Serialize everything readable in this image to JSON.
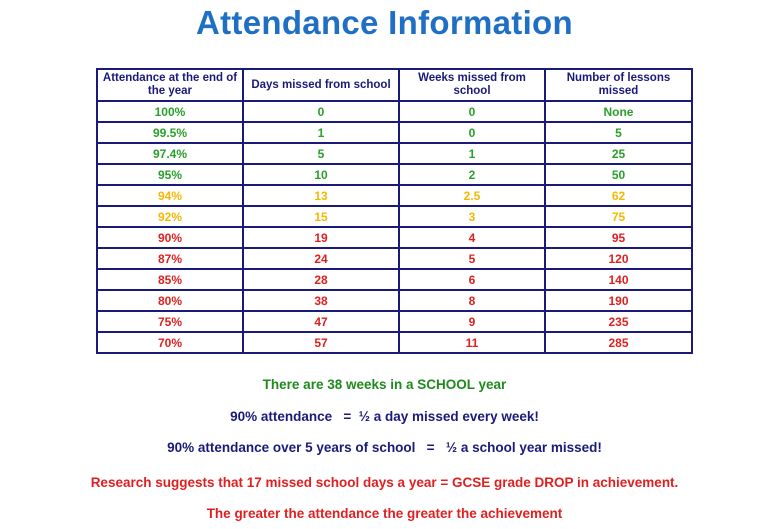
{
  "title": "Attendance Information",
  "colors": {
    "title": "#1f6fc5",
    "border": "#1a1a7a",
    "green": "#2aa02a",
    "amber": "#f5b800",
    "red": "#e02020",
    "navy": "#1a1a7a",
    "dark_green": "#1e8a1e"
  },
  "table": {
    "headers": [
      "Attendance at the end of the year",
      "Days missed from school",
      "Weeks missed from school",
      "Number of lessons missed"
    ],
    "rows": [
      {
        "status": "green",
        "cells": [
          "100%",
          "0",
          "0",
          "None"
        ]
      },
      {
        "status": "green",
        "cells": [
          "99.5%",
          "1",
          "0",
          "5"
        ]
      },
      {
        "status": "green",
        "cells": [
          "97.4%",
          "5",
          "1",
          "25"
        ]
      },
      {
        "status": "green",
        "cells": [
          "95%",
          "10",
          "2",
          "50"
        ]
      },
      {
        "status": "amber",
        "cells": [
          "94%",
          "13",
          "2.5",
          "62"
        ]
      },
      {
        "status": "amber",
        "cells": [
          "92%",
          "15",
          "3",
          "75"
        ]
      },
      {
        "status": "red",
        "cells": [
          "90%",
          "19",
          "4",
          "95"
        ]
      },
      {
        "status": "red",
        "cells": [
          "87%",
          "24",
          "5",
          "120"
        ]
      },
      {
        "status": "red",
        "cells": [
          "85%",
          "28",
          "6",
          "140"
        ]
      },
      {
        "status": "red",
        "cells": [
          "80%",
          "38",
          "8",
          "190"
        ]
      },
      {
        "status": "red",
        "cells": [
          "75%",
          "47",
          "9",
          "235"
        ]
      },
      {
        "status": "red",
        "cells": [
          "70%",
          "57",
          "11",
          "285"
        ]
      }
    ]
  },
  "notes": {
    "weeks": "There are 38 weeks in a SCHOOL year",
    "half_day": "90% attendance   =  ½ a day missed every week!",
    "five_years": "90% attendance over 5 years of school   =   ½ a school year missed!",
    "research": "Research suggests that 17 missed school days a year = GCSE grade DROP in achievement.",
    "greater": "The greater the attendance the greater the achievement"
  }
}
